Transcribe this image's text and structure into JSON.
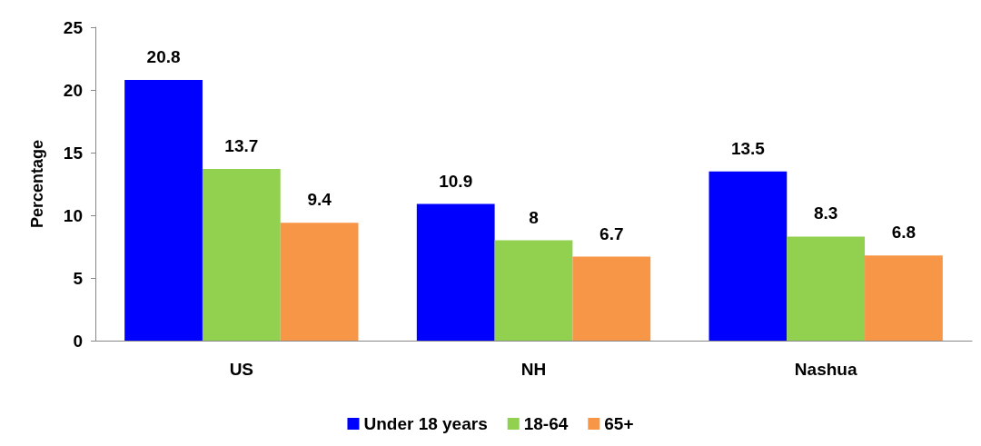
{
  "chart_data": {
    "type": "bar",
    "ylabel": "Percentage",
    "categories": [
      "US",
      "NH",
      "Nashua"
    ],
    "series": [
      {
        "name": "Under 18 years",
        "color": "#0000ff",
        "values": [
          20.8,
          10.9,
          13.5
        ]
      },
      {
        "name": "18-64",
        "color": "#92d050",
        "values": [
          13.7,
          8,
          8.3
        ]
      },
      {
        "name": "65+",
        "color": "#f79646",
        "values": [
          9.4,
          6.7,
          6.8
        ]
      }
    ],
    "ylim": [
      0,
      25
    ],
    "yticks": [
      0,
      5,
      10,
      15,
      20,
      25
    ],
    "grid": false,
    "legend": "bottom",
    "data_labels": true
  }
}
